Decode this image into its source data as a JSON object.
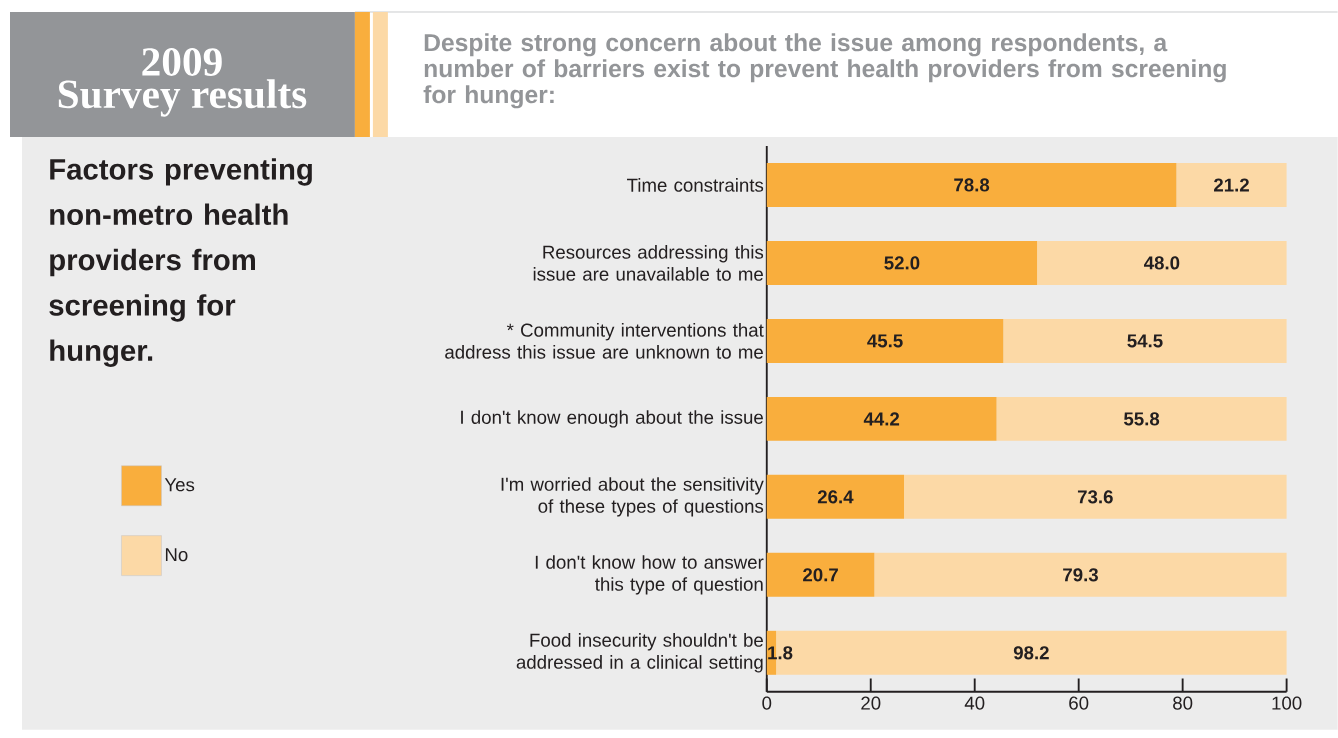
{
  "chart_data": {
    "type": "bar",
    "orientation": "horizontal",
    "stacked": true,
    "title": "Factors preventing non-metro health providers from screening for hunger.",
    "subtitle": "Despite strong concern about the issue among respondents, a number of barriers exist to prevent health providers from screening for hunger:",
    "annotations": [
      "2009",
      "Survey results"
    ],
    "categories": [
      "Time constraints",
      "Resources addressing this issue are unavailable to me",
      "* Community interventions that address this issue are unknown to me",
      "I don't know enough about the issue",
      "I'm worried about the sensitivity of these types of questions",
      "I don't know how to answer this type of question",
      "Food insecurity shouldn't be addressed in a clinical setting"
    ],
    "series": [
      {
        "name": "Yes",
        "color": "#f9ae3d",
        "values": [
          78.8,
          52.0,
          45.5,
          44.2,
          26.4,
          20.7,
          1.8
        ],
        "value_labels": [
          "78.8",
          "52.0",
          "45.5",
          "44.2",
          "26.4",
          "20.7",
          "1.8"
        ]
      },
      {
        "name": "No",
        "color": "#fcd9a6",
        "values": [
          21.2,
          48.0,
          54.5,
          55.8,
          73.6,
          79.3,
          98.2
        ],
        "value_labels": [
          "21.2",
          "48.0",
          "54.5",
          "55.8",
          "73.6",
          "79.3",
          "98.2"
        ]
      }
    ],
    "xlim": [
      0,
      100
    ],
    "xticks": [
      0,
      20,
      40,
      60,
      80,
      100
    ],
    "grid": false,
    "legend": "left"
  }
}
